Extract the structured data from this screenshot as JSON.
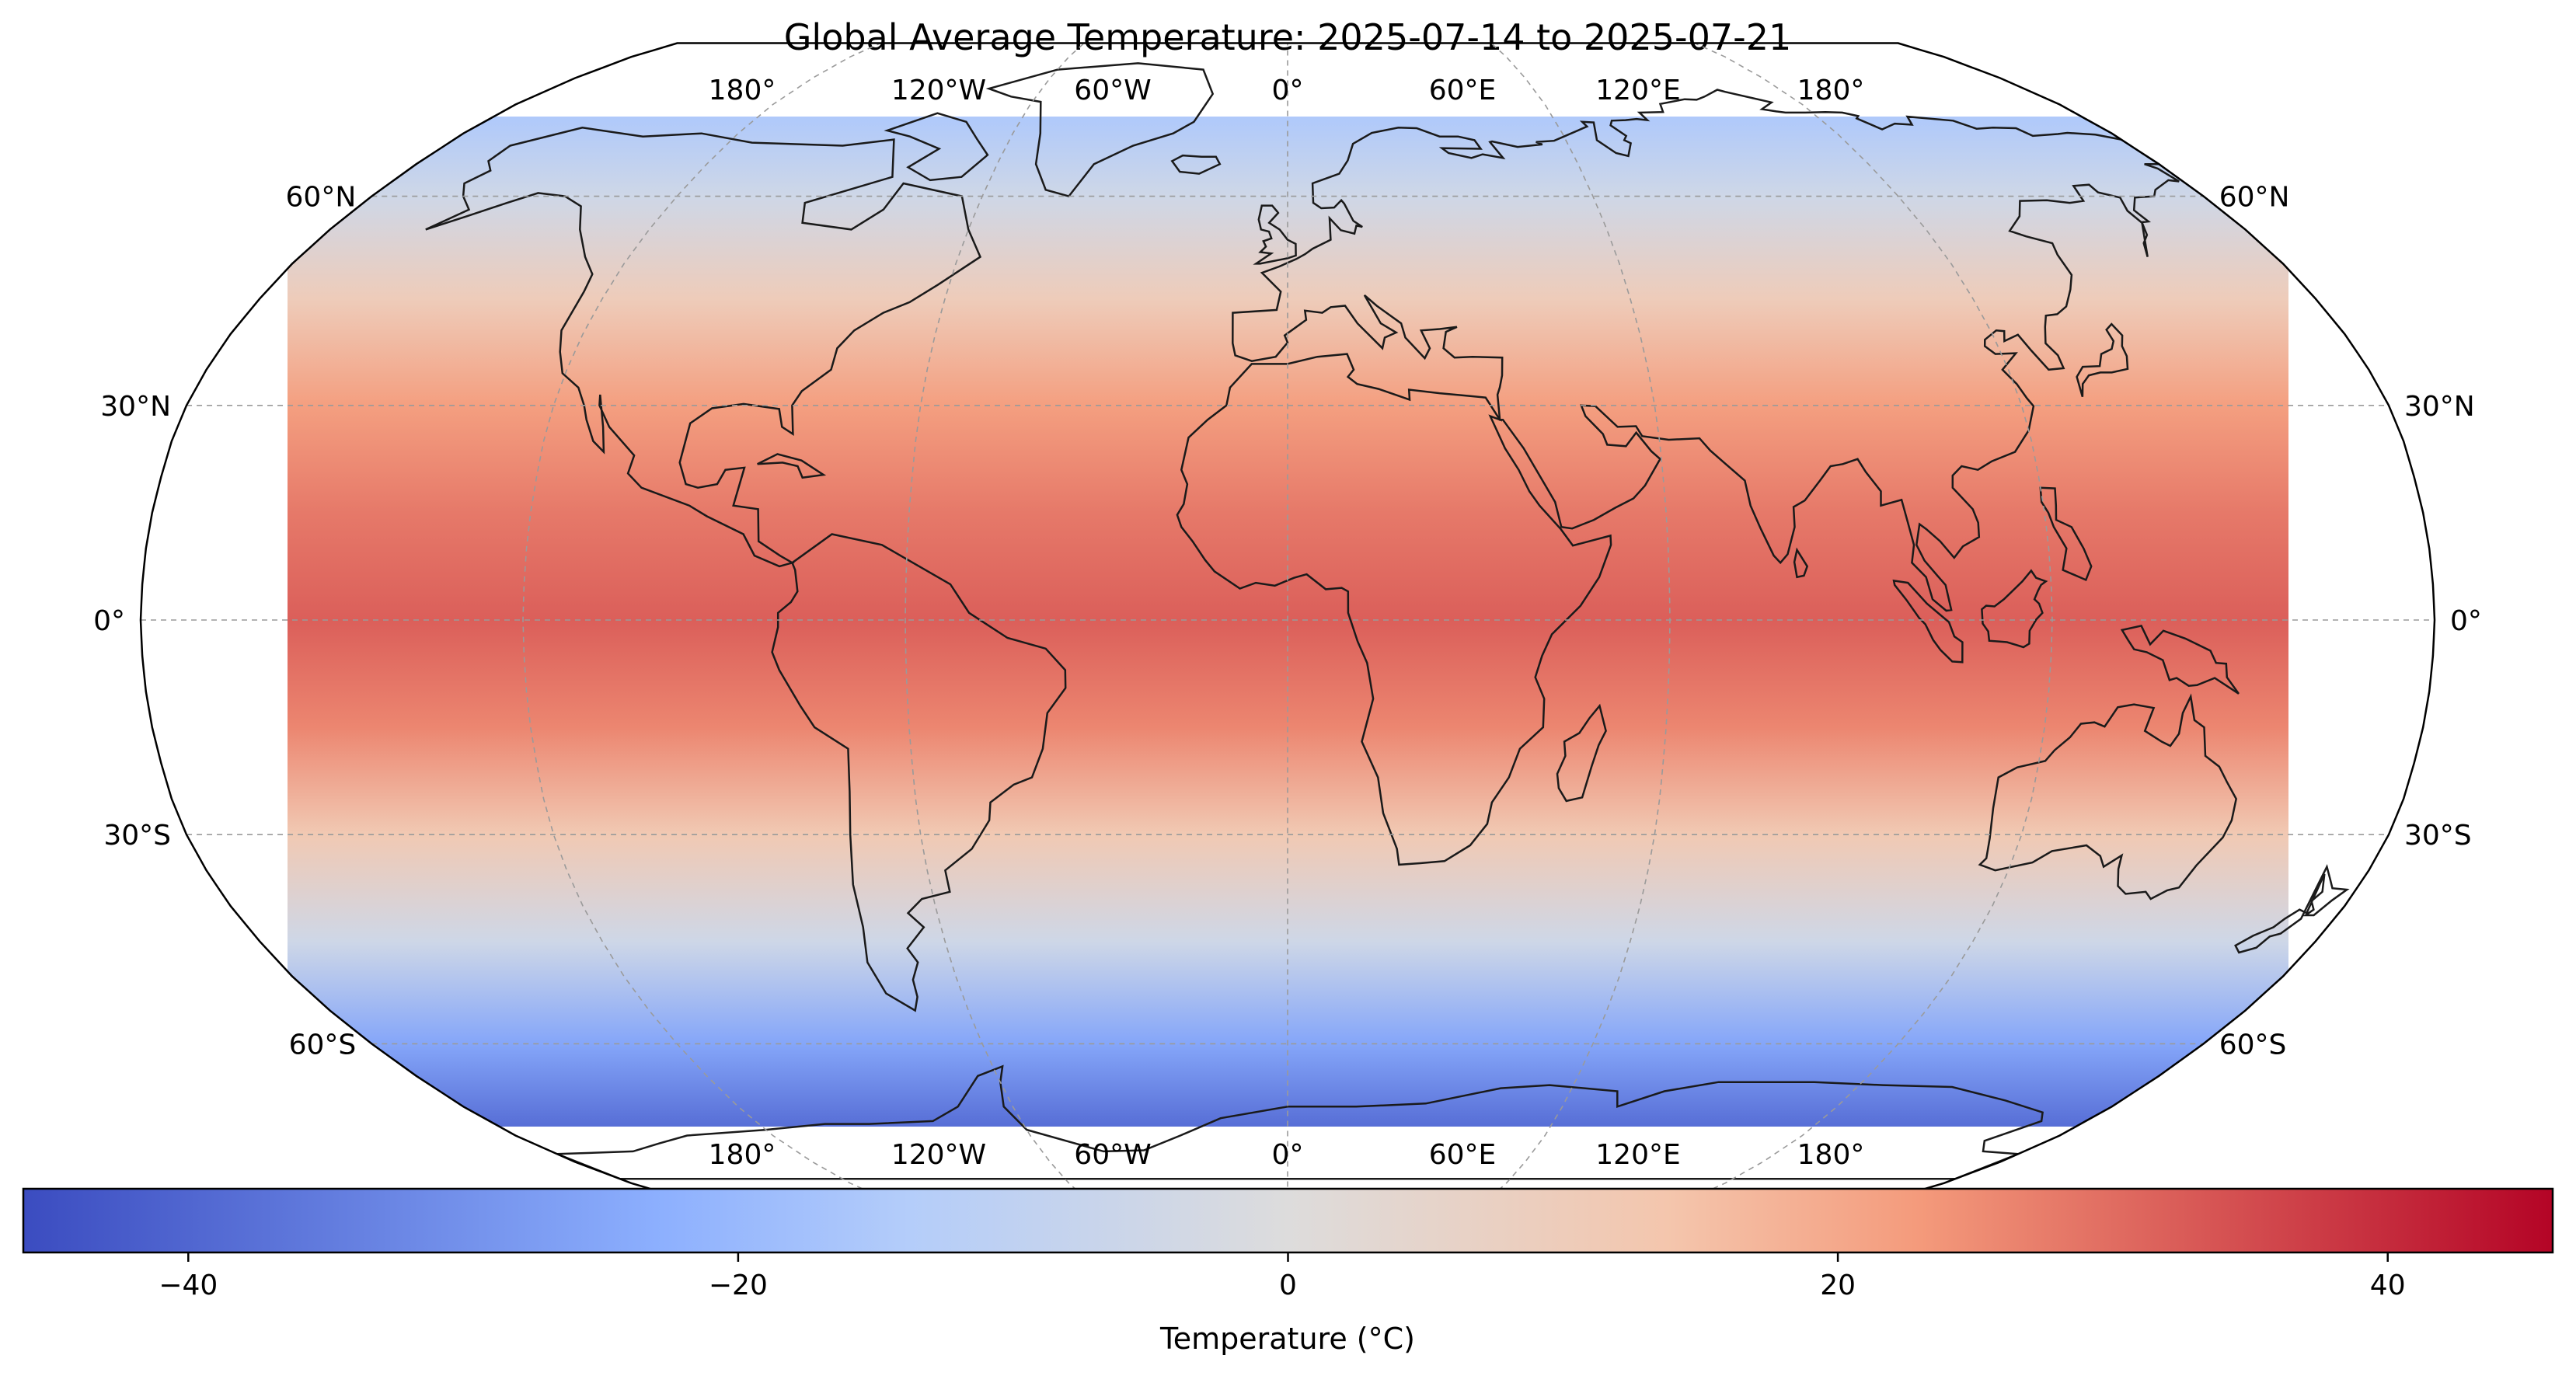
{
  "title": "Global Average Temperature: 2025-07-14 to 2025-07-21",
  "map": {
    "projection": "Robinson",
    "central_longitude": 0,
    "coastlines": true,
    "country_borders": true,
    "gridlines": true,
    "lon_labels_top": [
      "180°",
      "120°W",
      "60°W",
      "0°",
      "60°E",
      "120°E",
      "180°"
    ],
    "lon_labels_bottom": [
      "180°",
      "120°W",
      "60°W",
      "0°",
      "60°E",
      "120°E",
      "180°"
    ],
    "lat_labels": [
      "60°N",
      "30°N",
      "0°",
      "30°S",
      "60°S"
    ]
  },
  "colorbar": {
    "label": "Temperature (°C)",
    "colormap": "coolwarm",
    "min": -46,
    "max": 46,
    "ticks": [
      {
        "value": -40,
        "label": "−40"
      },
      {
        "value": -20,
        "label": "−20"
      },
      {
        "value": 0,
        "label": "0"
      },
      {
        "value": 20,
        "label": "20"
      },
      {
        "value": 40,
        "label": "40"
      }
    ],
    "stops": [
      {
        "t": 0.0,
        "color": "#3b4cc0"
      },
      {
        "t": 0.25,
        "color": "#8caffe"
      },
      {
        "t": 0.35,
        "color": "#b4cdfa"
      },
      {
        "t": 0.5,
        "color": "#dddcdc"
      },
      {
        "t": 0.65,
        "color": "#f4c6ad"
      },
      {
        "t": 0.75,
        "color": "#f49a7b"
      },
      {
        "t": 1.0,
        "color": "#b40426"
      }
    ]
  },
  "chart_data": {
    "type": "heatmap",
    "title": "Global Average Temperature: 2025-07-14 to 2025-07-21",
    "x": "longitude",
    "y": "latitude",
    "value": "temperature",
    "units": "°C",
    "latitude_profile": [
      {
        "lat": 90,
        "temp": -20
      },
      {
        "lat": 75,
        "temp": -15
      },
      {
        "lat": 60,
        "temp": -5
      },
      {
        "lat": 45,
        "temp": 10
      },
      {
        "lat": 30,
        "temp": 22
      },
      {
        "lat": 15,
        "temp": 28
      },
      {
        "lat": 0,
        "temp": 32
      },
      {
        "lat": -15,
        "temp": 26
      },
      {
        "lat": -30,
        "temp": 12
      },
      {
        "lat": -45,
        "temp": -5
      },
      {
        "lat": -60,
        "temp": -25
      },
      {
        "lat": -75,
        "temp": -38
      },
      {
        "lat": -90,
        "temp": -40
      }
    ],
    "colorbar_range": [
      -46,
      46
    ]
  }
}
